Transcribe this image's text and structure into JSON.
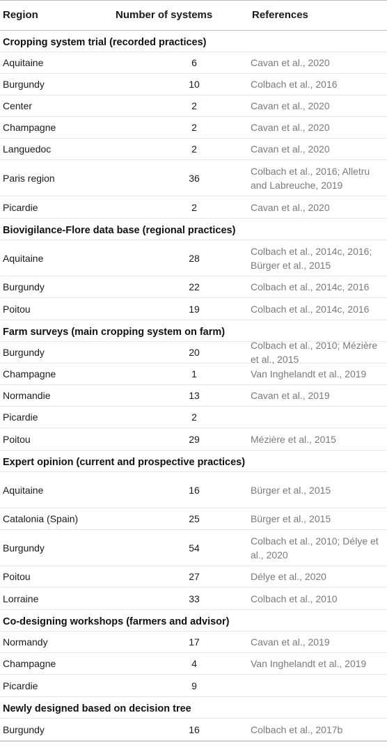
{
  "headers": {
    "region": "Region",
    "number": "Number of systems",
    "references": "References"
  },
  "sections": [
    {
      "title": "Cropping system trial (recorded practices)",
      "rows": [
        {
          "region": "Aquitaine",
          "number": "6",
          "ref": "Cavan et al., 2020"
        },
        {
          "region": "Burgundy",
          "number": "10",
          "ref": "Colbach et al., 2016"
        },
        {
          "region": "Center",
          "number": "2",
          "ref": "Cavan et al., 2020"
        },
        {
          "region": "Champagne",
          "number": "2",
          "ref": "Cavan et al., 2020"
        },
        {
          "region": "Languedoc",
          "number": "2",
          "ref": "Cavan et al., 2020"
        },
        {
          "region": "Paris region",
          "number": "36",
          "ref": "Colbach et al., 2016; Alletru and Labreuche, 2019"
        },
        {
          "region": "Picardie",
          "number": "2",
          "ref": "Cavan et al., 2020"
        }
      ]
    },
    {
      "title": "Biovigilance-Flore data base (regional practices)",
      "rows": [
        {
          "region": "Aquitaine",
          "number": "28",
          "ref": "Colbach et al., 2014c, 2016; Bürger et al., 2015"
        },
        {
          "region": "Burgundy",
          "number": "22",
          "ref": "Colbach et al., 2014c, 2016"
        },
        {
          "region": "Poitou",
          "number": "19",
          "ref": "Colbach et al., 2014c, 2016"
        }
      ]
    },
    {
      "title": "Farm surveys (main cropping system on farm)",
      "rows": [
        {
          "region": "Burgundy",
          "number": "20",
          "ref": "Colbach et al., 2010; Mézière et al., 2015"
        },
        {
          "region": "Champagne",
          "number": "1",
          "ref": "Van Inghelandt et al., 2019"
        },
        {
          "region": "Normandie",
          "number": "13",
          "ref": "Cavan et al., 2019"
        },
        {
          "region": "Picardie",
          "number": "2",
          "ref": ""
        },
        {
          "region": "Poitou",
          "number": "29",
          "ref": "Mézière et al., 2015"
        }
      ]
    },
    {
      "title": "Expert opinion (current and prospective practices)",
      "rows": [
        {
          "region": "Aquitaine",
          "number": "16",
          "ref": "Bürger et al., 2015"
        },
        {
          "region": "Catalonia (Spain)",
          "number": "25",
          "ref": "Bürger et al., 2015"
        },
        {
          "region": "Burgundy",
          "number": "54",
          "ref": "Colbach et al., 2010; Délye et al., 2020"
        },
        {
          "region": "Poitou",
          "number": "27",
          "ref": "Délye et al., 2020"
        },
        {
          "region": "Lorraine",
          "number": "33",
          "ref": "Colbach et al., 2010"
        }
      ]
    },
    {
      "title": "Co-designing workshops (farmers and advisor)",
      "rows": [
        {
          "region": "Normandy",
          "number": "17",
          "ref": "Cavan et al., 2019"
        },
        {
          "region": "Champagne",
          "number": "4",
          "ref": "Van Inghelandt et al., 2019"
        },
        {
          "region": "Picardie",
          "number": "9",
          "ref": ""
        }
      ]
    },
    {
      "title": "Newly designed based on decision tree",
      "rows": [
        {
          "region": "Burgundy",
          "number": "16",
          "ref": "Colbach et al., 2017b"
        }
      ]
    }
  ]
}
